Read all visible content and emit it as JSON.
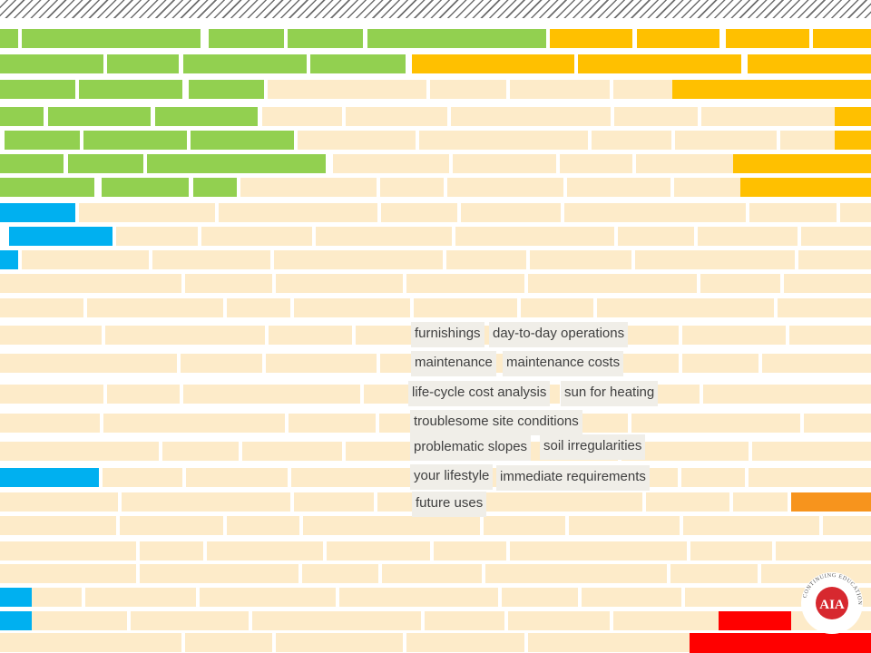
{
  "tags": [
    {
      "text": "furnishings"
    },
    {
      "text": "day-to-day operations"
    },
    {
      "text": "maintenance"
    },
    {
      "text": "maintenance costs"
    },
    {
      "text": "life-cycle cost analysis"
    },
    {
      "text": "sun for heating"
    },
    {
      "text": "troublesome site conditions"
    },
    {
      "text": "problematic slopes"
    },
    {
      "text": "soil irregularities"
    },
    {
      "text": "your lifestyle"
    },
    {
      "text": "immediate requirements"
    },
    {
      "text": "future uses"
    }
  ],
  "logo": {
    "mark_text": "AIA",
    "ring_text": "CONTINUING EDUCATION"
  },
  "colors": {
    "brick": "#fdebc9",
    "green": "#92d050",
    "yellow": "#ffc000",
    "blue": "#00b0f0",
    "orange": "#f7941d",
    "red": "#ff0000",
    "tag_background": "#f0eee8",
    "logo_red": "#d7282f"
  }
}
